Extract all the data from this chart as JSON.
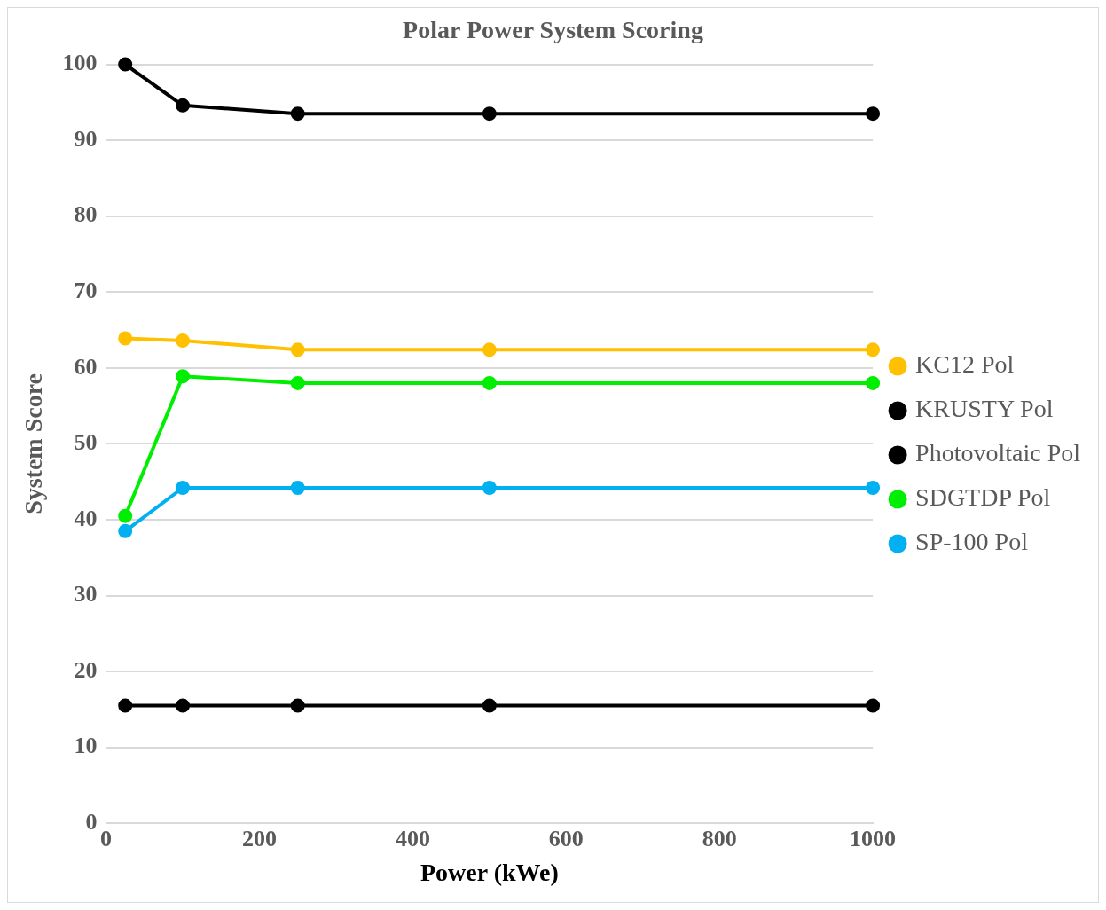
{
  "chart_data": {
    "type": "line",
    "title": "Polar Power System Scoring",
    "xlabel": "Power (kWe)",
    "ylabel": "System Score",
    "x": [
      25,
      100,
      250,
      500,
      1000
    ],
    "series": [
      {
        "name": "KC12 Pol",
        "color": "#ffc000",
        "values": [
          63.9,
          63.6,
          62.4,
          62.4,
          62.4
        ]
      },
      {
        "name": "KRUSTY Pol",
        "color": "#000000",
        "values": [
          100,
          94.6,
          93.5,
          93.5,
          93.5
        ]
      },
      {
        "name": "Photovoltaic Pol",
        "color": "#000000",
        "values": [
          15.5,
          15.5,
          15.5,
          15.5,
          15.5
        ]
      },
      {
        "name": "SDGTDP Pol",
        "color": "#00ee00",
        "values": [
          40.5,
          58.9,
          58,
          58,
          58
        ]
      },
      {
        "name": "SP-100 Pol",
        "color": "#00b0f0",
        "values": [
          38.5,
          44.2,
          44.2,
          44.2,
          44.2
        ]
      }
    ],
    "xlim": [
      0,
      1000
    ],
    "xticks": [
      0,
      200,
      400,
      600,
      800,
      1000
    ],
    "ylim": [
      0,
      100
    ],
    "yticks": [
      0,
      10,
      20,
      30,
      40,
      50,
      60,
      70,
      80,
      90,
      100
    ],
    "grid": "y",
    "legend": "right",
    "marker": "circle",
    "line_style": "solid"
  }
}
